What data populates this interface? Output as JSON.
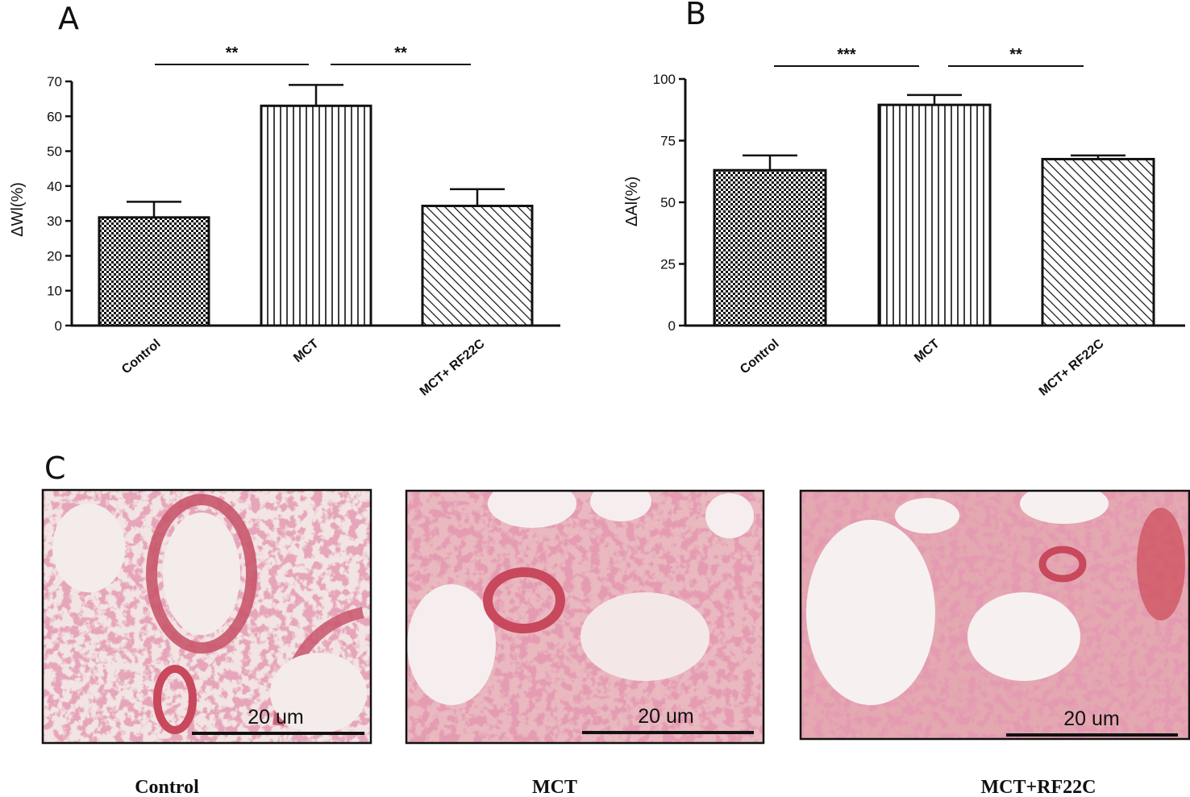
{
  "chart_data": [
    {
      "panel": "A",
      "type": "bar",
      "ylabel": "ΔWl(%)",
      "categories": [
        "Control",
        "MCT",
        "MCT+ RF22C"
      ],
      "values": [
        31,
        63,
        34.3
      ],
      "errors": [
        4.5,
        6,
        4.8
      ],
      "ylim": [
        0,
        70
      ],
      "yticks": [
        0,
        10,
        20,
        30,
        40,
        50,
        60,
        70
      ],
      "patterns": [
        "checker",
        "vertical",
        "diagonal"
      ],
      "significance": [
        {
          "from": 0,
          "to": 1,
          "label": "**"
        },
        {
          "from": 1,
          "to": 2,
          "label": "**"
        }
      ]
    },
    {
      "panel": "B",
      "type": "bar",
      "ylabel": "ΔAl(%)",
      "categories": [
        "Control",
        "MCT",
        "MCT+ RF22C"
      ],
      "values": [
        63,
        89.5,
        67.5
      ],
      "errors": [
        6,
        4,
        1.5
      ],
      "ylim": [
        0,
        100
      ],
      "yticks": [
        0,
        25,
        50,
        75,
        100
      ],
      "patterns": [
        "checker",
        "vertical",
        "diagonal"
      ],
      "significance": [
        {
          "from": 0,
          "to": 1,
          "label": "***"
        },
        {
          "from": 1,
          "to": 2,
          "label": "**"
        }
      ]
    }
  ],
  "panel_c": {
    "letter": "C",
    "images": [
      {
        "caption": "Control",
        "scale_label": "20 um"
      },
      {
        "caption": "MCT",
        "scale_label": "20 um"
      },
      {
        "caption": "MCT+RF22C",
        "scale_label": "20 um"
      }
    ]
  }
}
